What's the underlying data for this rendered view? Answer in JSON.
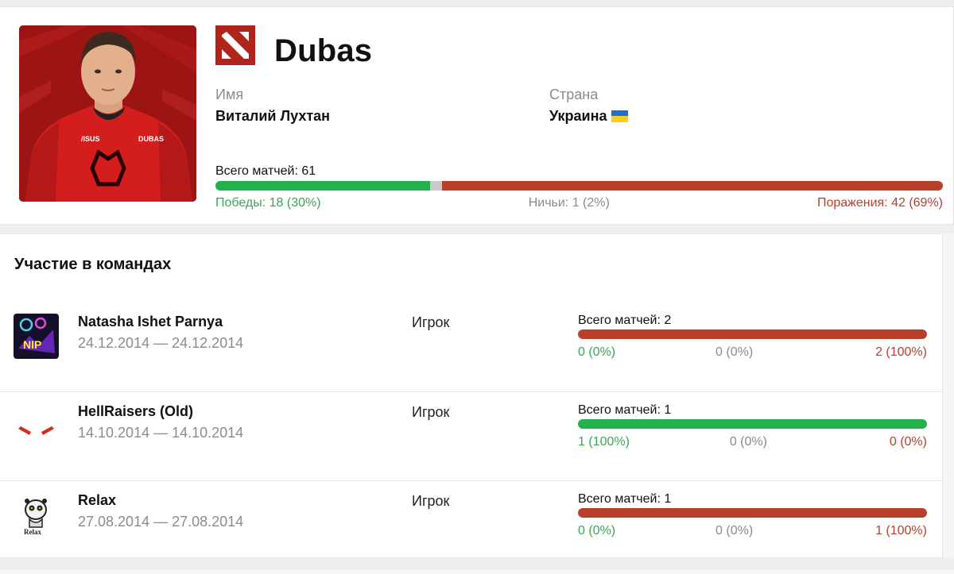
{
  "player": {
    "nickname": "Dubas",
    "name_label": "Имя",
    "name_value": "Виталий Лухтан",
    "country_label": "Страна",
    "country_value": "Украина",
    "flag_icon": "ukraine-flag-icon",
    "game_icon": "dota2-logo-icon",
    "total_label": "Всего матчей: 61",
    "wins_label": "Победы: 18 (30%)",
    "draws_label": "Ничьи: 1 (2%)",
    "losses_label": "Поражения: 42 (69%)",
    "wins": 18,
    "draws": 1,
    "losses": 42
  },
  "teams_section": {
    "heading": "Участие в командах",
    "teams": [
      {
        "name": "Natasha Ishet Parnya",
        "dates": "24.12.2014 — 24.12.2014",
        "role": "Игрок",
        "total_label": "Всего матчей: 2",
        "wins_label": "0 (0%)",
        "draws_label": "0 (0%)",
        "losses_label": "2 (100%)",
        "wins": 0,
        "draws": 0,
        "losses": 2,
        "logo_icon": "natasha-ishet-parnya-logo"
      },
      {
        "name": "HellRaisers (Old)",
        "dates": "14.10.2014 — 14.10.2014",
        "role": "Игрок",
        "total_label": "Всего матчей: 1",
        "wins_label": "1 (100%)",
        "draws_label": "0 (0%)",
        "losses_label": "0 (0%)",
        "wins": 1,
        "draws": 0,
        "losses": 0,
        "logo_icon": "hellraisers-logo"
      },
      {
        "name": "Relax",
        "dates": "27.08.2014 — 27.08.2014",
        "role": "Игрок",
        "total_label": "Всего матчей: 1",
        "wins_label": "0 (0%)",
        "draws_label": "0 (0%)",
        "losses_label": "1 (100%)",
        "wins": 0,
        "draws": 0,
        "losses": 1,
        "logo_icon": "relax-lemur-logo"
      }
    ]
  },
  "colors": {
    "win": "#22b14c",
    "draw": "#c9c9c9",
    "loss": "#b8402b",
    "brand_red": "#b0251b"
  }
}
